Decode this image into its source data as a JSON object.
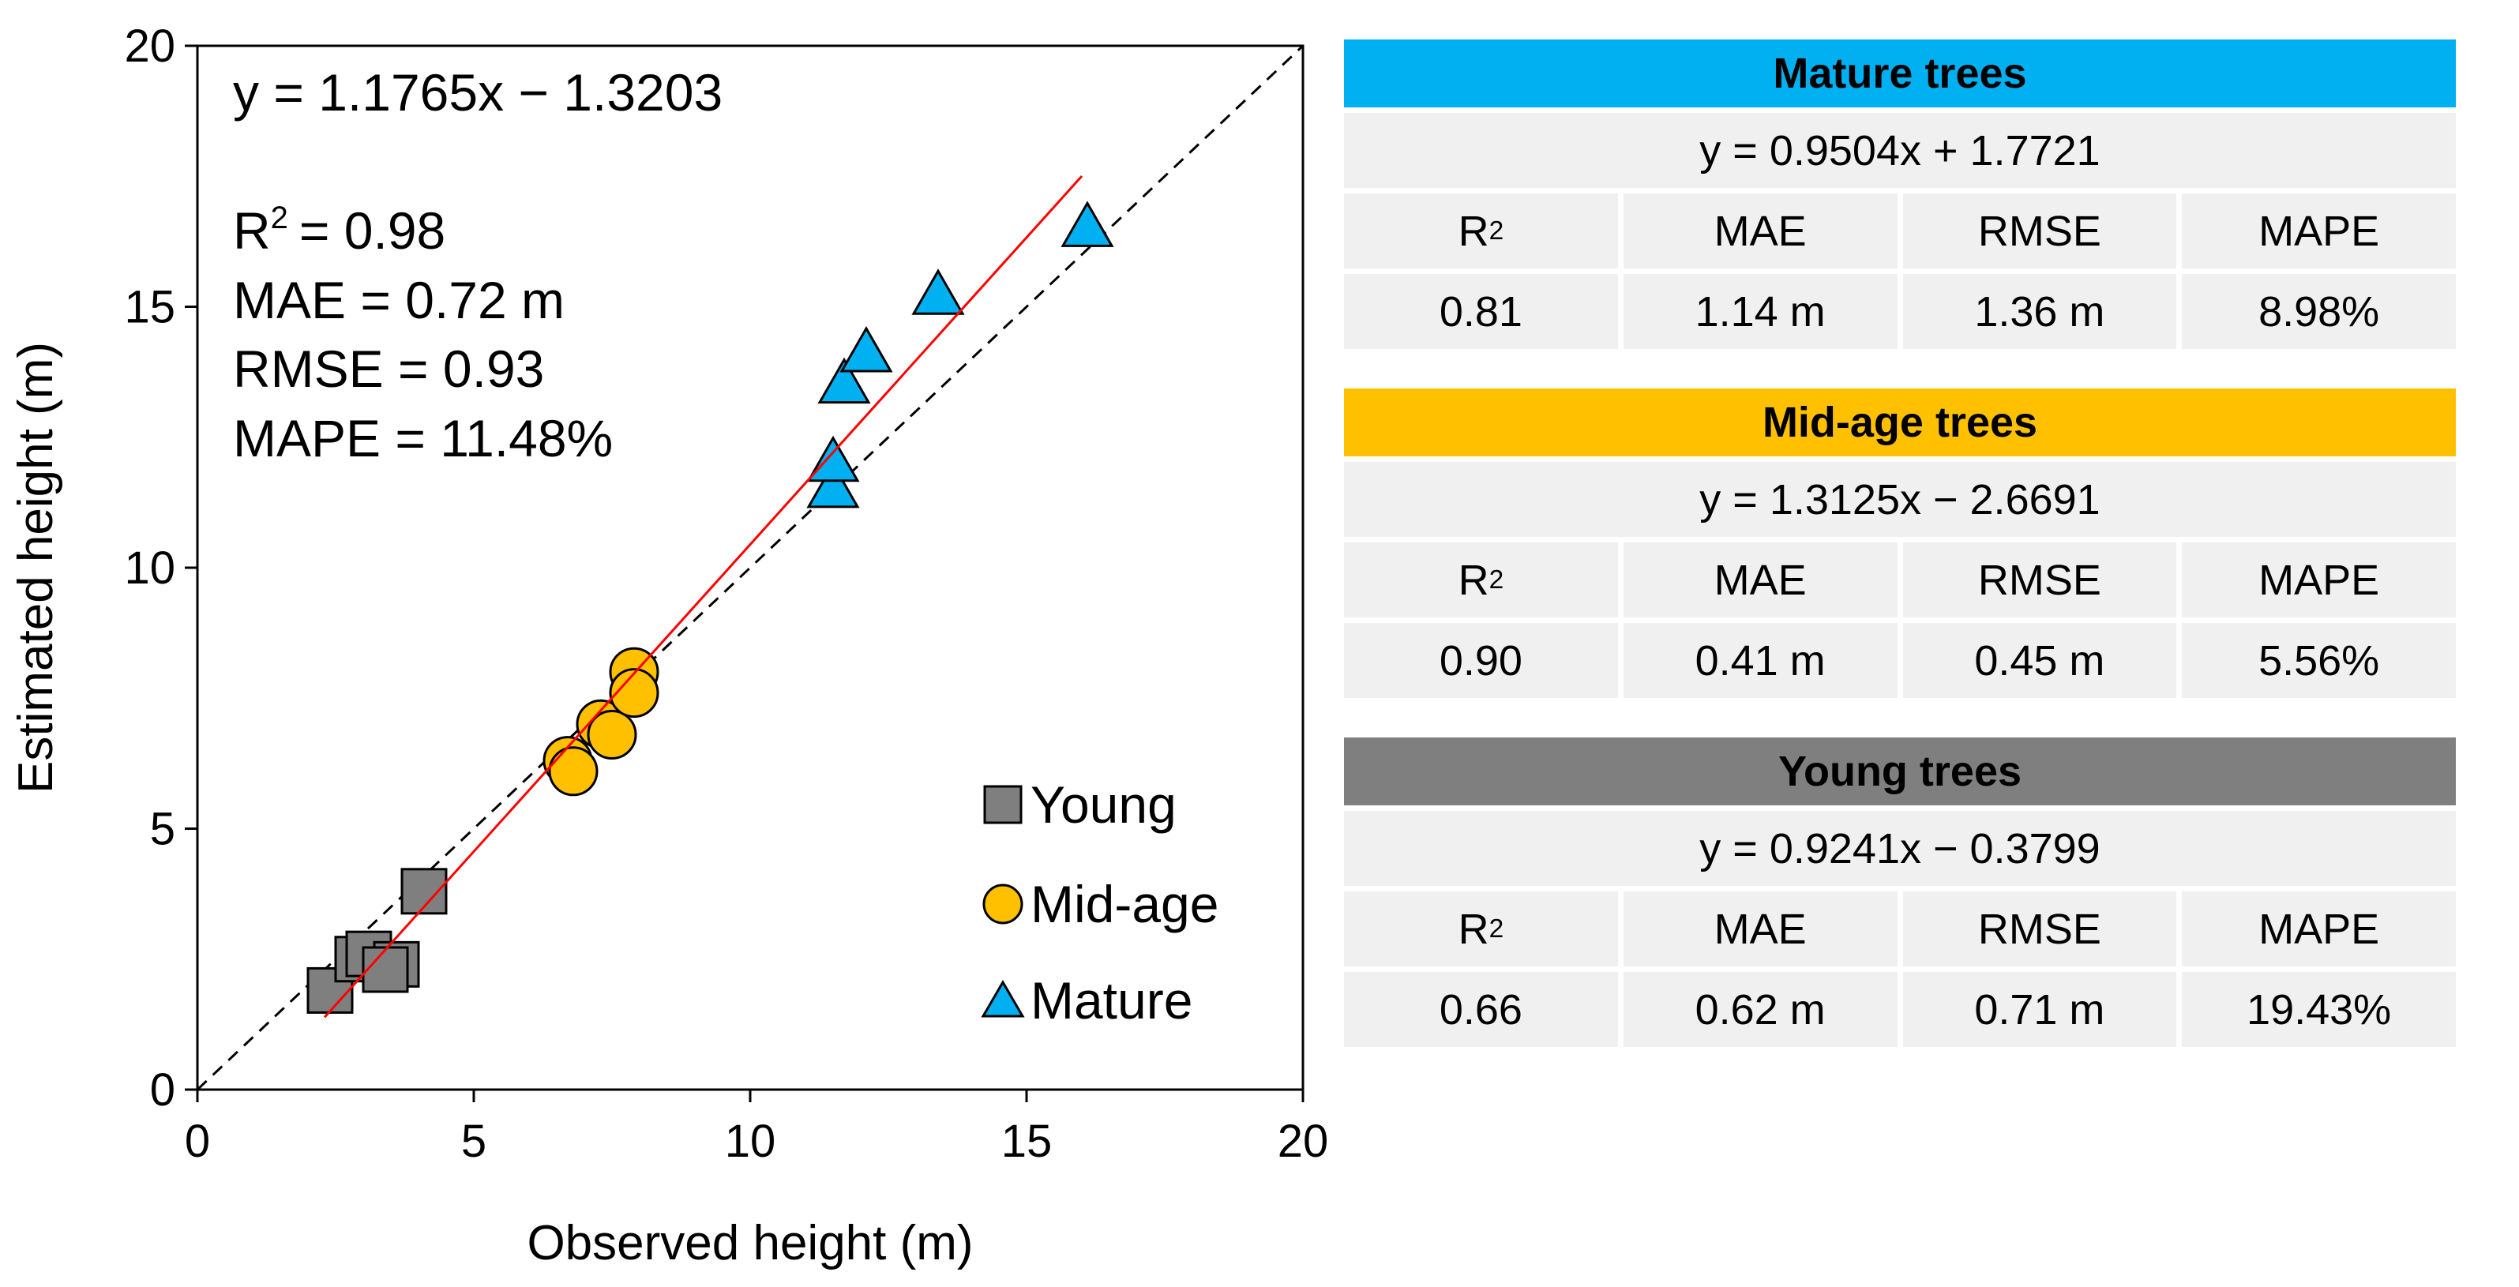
{
  "chart_data": {
    "type": "scatter",
    "xlabel": "Observed height (m)",
    "ylabel": "Estimated height (m)",
    "xlim": [
      0,
      20
    ],
    "ylim": [
      0,
      20
    ],
    "xticks": [
      "0",
      "5",
      "10",
      "15",
      "20"
    ],
    "yticks": [
      "0",
      "5",
      "10",
      "15",
      "20"
    ],
    "reference_line": "1:1",
    "fit": {
      "slope": 1.1765,
      "intercept": -1.3203,
      "x_range": [
        2.3,
        16.0
      ],
      "color": "#ff0000"
    },
    "annotations": {
      "equation": "y = 1.1765x − 1.3203",
      "r2_label": "R",
      "r2_value": "= 0.98",
      "mae": "MAE = 0.72 m",
      "rmse": "RMSE = 0.93",
      "mape": "MAPE = 11.48%"
    },
    "legend_position": "bottom-right",
    "series": [
      {
        "name": "Young",
        "marker": "square",
        "color": "#7f7f7f",
        "x": [
          2.4,
          2.9,
          3.1,
          3.6,
          3.4,
          4.1
        ],
        "y": [
          1.9,
          2.5,
          2.6,
          2.4,
          2.3,
          3.8
        ]
      },
      {
        "name": "Mid-age",
        "marker": "circle",
        "color": "#ffc000",
        "x": [
          6.7,
          6.8,
          7.3,
          7.5,
          7.9,
          7.9
        ],
        "y": [
          6.3,
          6.1,
          7.0,
          6.8,
          8.0,
          7.6
        ]
      },
      {
        "name": "Mature",
        "marker": "triangle",
        "color": "#00b0f0",
        "x": [
          11.5,
          11.5,
          11.7,
          12.1,
          13.4,
          16.1
        ],
        "y": [
          11.5,
          12.0,
          13.5,
          14.1,
          15.2,
          16.5
        ]
      }
    ]
  },
  "tables": [
    {
      "title": "Mature trees",
      "color": "#00b0f0",
      "equation": "y = 0.9504x + 1.7721",
      "headers": [
        "R",
        "MAE",
        "RMSE",
        "MAPE"
      ],
      "values": [
        "0.81",
        "1.14 m",
        "1.36 m",
        "8.98%"
      ]
    },
    {
      "title": "Mid-age trees",
      "color": "#ffc000",
      "equation": "y = 1.3125x − 2.6691",
      "headers": [
        "R",
        "MAE",
        "RMSE",
        "MAPE"
      ],
      "values": [
        "0.90",
        "0.41 m",
        "0.45 m",
        "5.56%"
      ]
    },
    {
      "title": "Young trees",
      "color": "#7f7f7f",
      "equation": "y = 0.9241x − 0.3799",
      "headers": [
        "R",
        "MAE",
        "RMSE",
        "MAPE"
      ],
      "values": [
        "0.66",
        "0.62 m",
        "0.71 m",
        "19.43%"
      ]
    }
  ],
  "superscript": "2"
}
